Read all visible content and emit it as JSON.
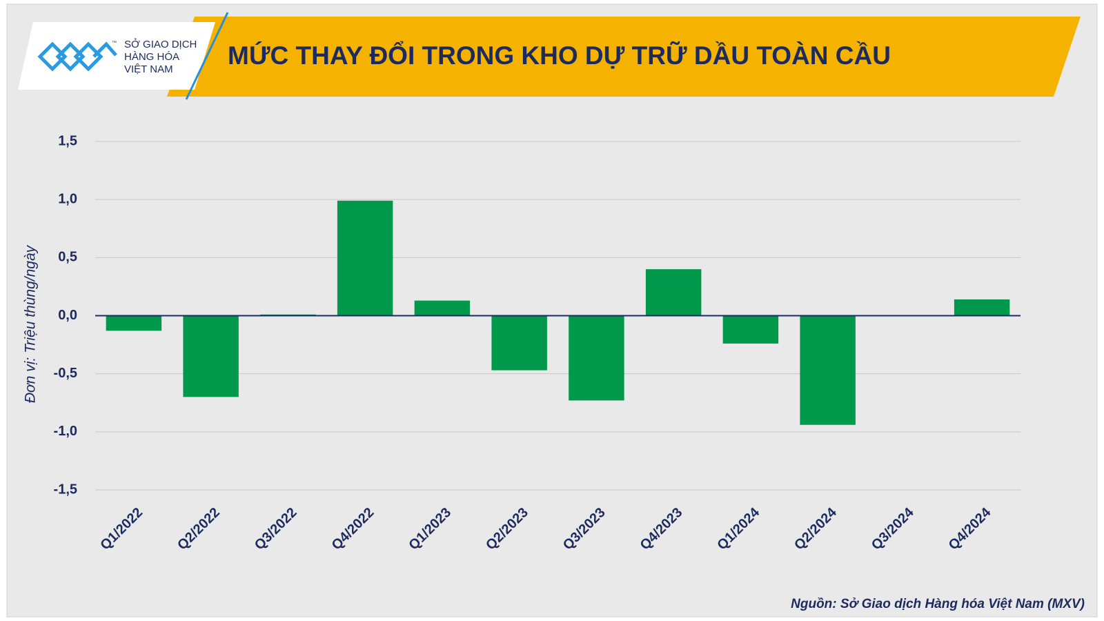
{
  "logo": {
    "mark": "™",
    "lines": [
      "SỞ GIAO DỊCH",
      "HÀNG HÓA",
      "VIỆT NAM"
    ]
  },
  "source": "Nguồn: Sở Giao dịch Hàng hóa Việt Nam (MXV)",
  "chart_data": {
    "type": "bar",
    "title": "MỨC THAY ĐỔI TRONG KHO DỰ TRỮ DẦU TOÀN CẦU",
    "y_label": "Đơn vị: Triệu thùng/ngày",
    "categories": [
      "Q1/2022",
      "Q2/2022",
      "Q3/2022",
      "Q4/2022",
      "Q1/2023",
      "Q2/2023",
      "Q3/2023",
      "Q4/2023",
      "Q1/2024",
      "Q2/2024",
      "Q3/2024",
      "Q4/2024"
    ],
    "values": [
      -0.13,
      -0.7,
      0.01,
      0.99,
      0.13,
      -0.47,
      -0.73,
      0.4,
      -0.24,
      -0.94,
      0.0,
      0.14
    ],
    "color": "#00984a",
    "ylim": [
      -1.5,
      1.5
    ],
    "yticks": [
      {
        "value": 1.5,
        "label": "1,5"
      },
      {
        "value": 1.0,
        "label": "1,0"
      },
      {
        "value": 0.5,
        "label": "0,5"
      },
      {
        "value": 0.0,
        "label": "0,0"
      },
      {
        "value": -0.5,
        "label": "-0,5"
      },
      {
        "value": -1.0,
        "label": "-1,0"
      },
      {
        "value": -1.5,
        "label": "-1,5"
      }
    ],
    "grid": true
  }
}
